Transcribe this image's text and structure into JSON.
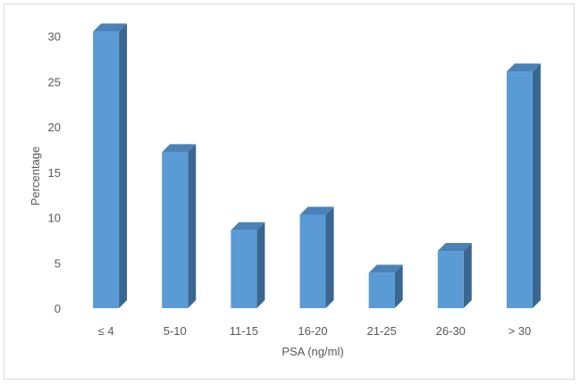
{
  "chart_data": {
    "type": "bar",
    "style": "3d-column",
    "categories": [
      "≤ 4",
      "5-10",
      "11-15",
      "16-20",
      "21-25",
      "26-30",
      "> 30"
    ],
    "values": [
      30.5,
      17.2,
      8.6,
      10.3,
      3.9,
      6.3,
      26.1
    ],
    "title": "",
    "xlabel": "PSA (ng/ml)",
    "ylabel": "Percentage",
    "ylim": [
      0,
      30
    ],
    "yticks": [
      0,
      5,
      10,
      15,
      20,
      25,
      30
    ],
    "grid": false,
    "legend": "none",
    "colors": {
      "bar_front": "#5b9bd5",
      "bar_top": "#4a82b8",
      "bar_side": "#3a6791",
      "frame": "#d9d9d9",
      "text": "#595959"
    }
  }
}
